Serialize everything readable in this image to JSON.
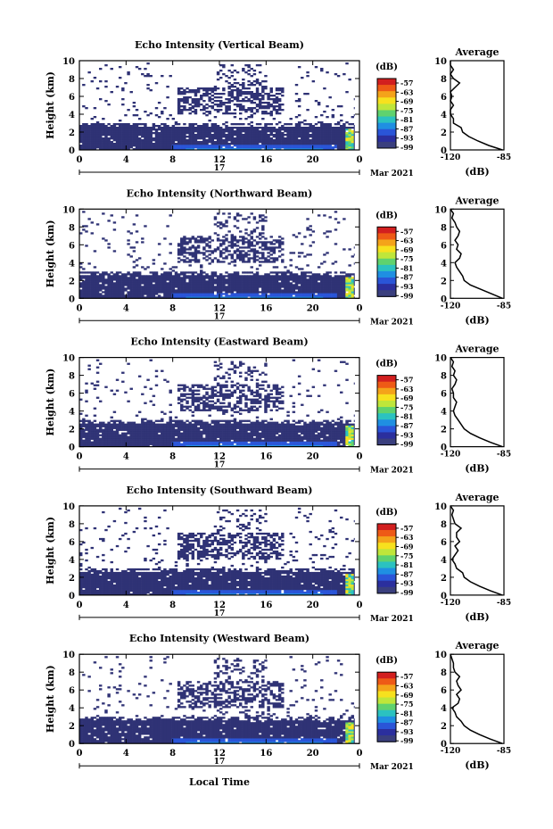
{
  "figure": {
    "date_label": "Mar 2021",
    "day_label": "17",
    "xlabel": "Local Time",
    "ylabel": "Height (km)",
    "colorbar_unit": "(dB)",
    "colorbar_ticks": [
      "-57",
      "-63",
      "-69",
      "-75",
      "-81",
      "-87",
      "-93",
      "-99"
    ],
    "colorbar_colors": [
      "#d21f1f",
      "#ee5a16",
      "#f4a31a",
      "#f7e11e",
      "#bfe63a",
      "#5fd26e",
      "#2bc2c0",
      "#1f8fe2",
      "#2a55d8",
      "#2b2f9e",
      "#3a3f7e"
    ],
    "colors": {
      "echo": "#2f3275",
      "white": "#ffffff"
    },
    "average_title": "Average",
    "average_xlabel": "(dB)"
  },
  "chart_data": [
    {
      "type": "heatmap",
      "title": "Echo Intensity (Vertical Beam)",
      "xlabel": "Local Time",
      "ylabel": "Height (km)",
      "x_ticks": [
        "0",
        "4",
        "8",
        "12",
        "16",
        "20",
        "0"
      ],
      "y_ticks": [
        "0",
        "2",
        "4",
        "6",
        "8",
        "10"
      ],
      "xlim": [
        0,
        24
      ],
      "ylim": [
        0,
        10
      ],
      "colorbar_range_db": [
        -99,
        -57
      ],
      "profile": {
        "title": "Average",
        "xlabel": "(dB)",
        "x_ticks": [
          "-120",
          "-85"
        ],
        "height_km": [
          0,
          0.5,
          1,
          1.5,
          2,
          2.5,
          3,
          3.5,
          4,
          4.5,
          5,
          5.5,
          6,
          6.5,
          7,
          7.5,
          8,
          8.5,
          9,
          9.5,
          10
        ],
        "avg_db": [
          -86,
          -95,
          -102,
          -108,
          -112,
          -113,
          -118,
          -118,
          -120,
          -120,
          -118,
          -120,
          -119,
          -120,
          -117,
          -114,
          -118,
          -120,
          -118,
          -120,
          -120
        ]
      }
    },
    {
      "type": "heatmap",
      "title": "Echo Intensity (Northward Beam)",
      "xlabel": "Local Time",
      "ylabel": "Height (km)",
      "x_ticks": [
        "0",
        "4",
        "8",
        "12",
        "16",
        "20",
        "0"
      ],
      "y_ticks": [
        "0",
        "2",
        "4",
        "6",
        "8",
        "10"
      ],
      "xlim": [
        0,
        24
      ],
      "ylim": [
        0,
        10
      ],
      "colorbar_range_db": [
        -99,
        -57
      ],
      "profile": {
        "title": "Average",
        "xlabel": "(dB)",
        "x_ticks": [
          "-120",
          "-85"
        ],
        "height_km": [
          0,
          0.5,
          1,
          1.5,
          2,
          2.5,
          3,
          3.5,
          4,
          4.5,
          5,
          5.5,
          6,
          6.5,
          7,
          7.5,
          8,
          8.5,
          9,
          9.5,
          10
        ],
        "avg_db": [
          -86,
          -93,
          -100,
          -107,
          -111,
          -112,
          -114,
          -116,
          -117,
          -114,
          -113,
          -116,
          -115,
          -117,
          -115,
          -114,
          -116,
          -117,
          -119,
          -118,
          -120
        ]
      }
    },
    {
      "type": "heatmap",
      "title": "Echo Intensity (Eastward Beam)",
      "xlabel": "Local Time",
      "ylabel": "Height (km)",
      "x_ticks": [
        "0",
        "4",
        "8",
        "12",
        "16",
        "20",
        "0"
      ],
      "y_ticks": [
        "0",
        "2",
        "4",
        "6",
        "8",
        "10"
      ],
      "xlim": [
        0,
        24
      ],
      "ylim": [
        0,
        10
      ],
      "colorbar_range_db": [
        -99,
        -57
      ],
      "profile": {
        "title": "Average",
        "xlabel": "(dB)",
        "x_ticks": [
          "-120",
          "-85"
        ],
        "height_km": [
          0,
          0.5,
          1,
          1.5,
          2,
          2.5,
          3,
          3.5,
          4,
          4.5,
          5,
          5.5,
          6,
          6.5,
          7,
          7.5,
          8,
          8.5,
          9,
          9.5,
          10
        ],
        "avg_db": [
          -86,
          -94,
          -101,
          -107,
          -111,
          -113,
          -115,
          -117,
          -118,
          -117,
          -116,
          -118,
          -118,
          -119,
          -117,
          -116,
          -118,
          -117,
          -119,
          -118,
          -120
        ]
      }
    },
    {
      "type": "heatmap",
      "title": "Echo Intensity (Southward Beam)",
      "xlabel": "Local Time",
      "ylabel": "Height (km)",
      "x_ticks": [
        "0",
        "4",
        "8",
        "12",
        "16",
        "20",
        "0"
      ],
      "y_ticks": [
        "0",
        "2",
        "4",
        "6",
        "8",
        "10"
      ],
      "xlim": [
        0,
        24
      ],
      "ylim": [
        0,
        10
      ],
      "colorbar_range_db": [
        -99,
        -57
      ],
      "profile": {
        "title": "Average",
        "xlabel": "(dB)",
        "x_ticks": [
          "-120",
          "-85"
        ],
        "height_km": [
          0,
          0.5,
          1,
          1.5,
          2,
          2.5,
          3,
          3.5,
          4,
          4.5,
          5,
          5.5,
          6,
          6.5,
          7,
          7.5,
          8,
          8.5,
          9,
          9.5,
          10
        ],
        "avg_db": [
          -86,
          -94,
          -101,
          -107,
          -111,
          -112,
          -116,
          -117,
          -119,
          -117,
          -115,
          -117,
          -114,
          -116,
          -116,
          -113,
          -117,
          -118,
          -119,
          -118,
          -120
        ]
      }
    },
    {
      "type": "heatmap",
      "title": "Echo Intensity (Westward Beam)",
      "xlabel": "Local Time",
      "ylabel": "Height (km)",
      "x_ticks": [
        "0",
        "4",
        "8",
        "12",
        "16",
        "20",
        "0"
      ],
      "y_ticks": [
        "0",
        "2",
        "4",
        "6",
        "8",
        "10"
      ],
      "xlim": [
        0,
        24
      ],
      "ylim": [
        0,
        10
      ],
      "colorbar_range_db": [
        -99,
        -57
      ],
      "profile": {
        "title": "Average",
        "xlabel": "(dB)",
        "x_ticks": [
          "-120",
          "-85"
        ],
        "height_km": [
          0,
          0.5,
          1,
          1.5,
          2,
          2.5,
          3,
          3.5,
          4,
          4.5,
          5,
          5.5,
          6,
          6.5,
          7,
          7.5,
          8,
          8.5,
          9,
          9.5,
          10
        ],
        "avg_db": [
          -86,
          -94,
          -101,
          -107,
          -111,
          -113,
          -116,
          -117,
          -119,
          -115,
          -114,
          -116,
          -113,
          -115,
          -116,
          -114,
          -117,
          -118,
          -118,
          -119,
          -120
        ]
      }
    }
  ]
}
